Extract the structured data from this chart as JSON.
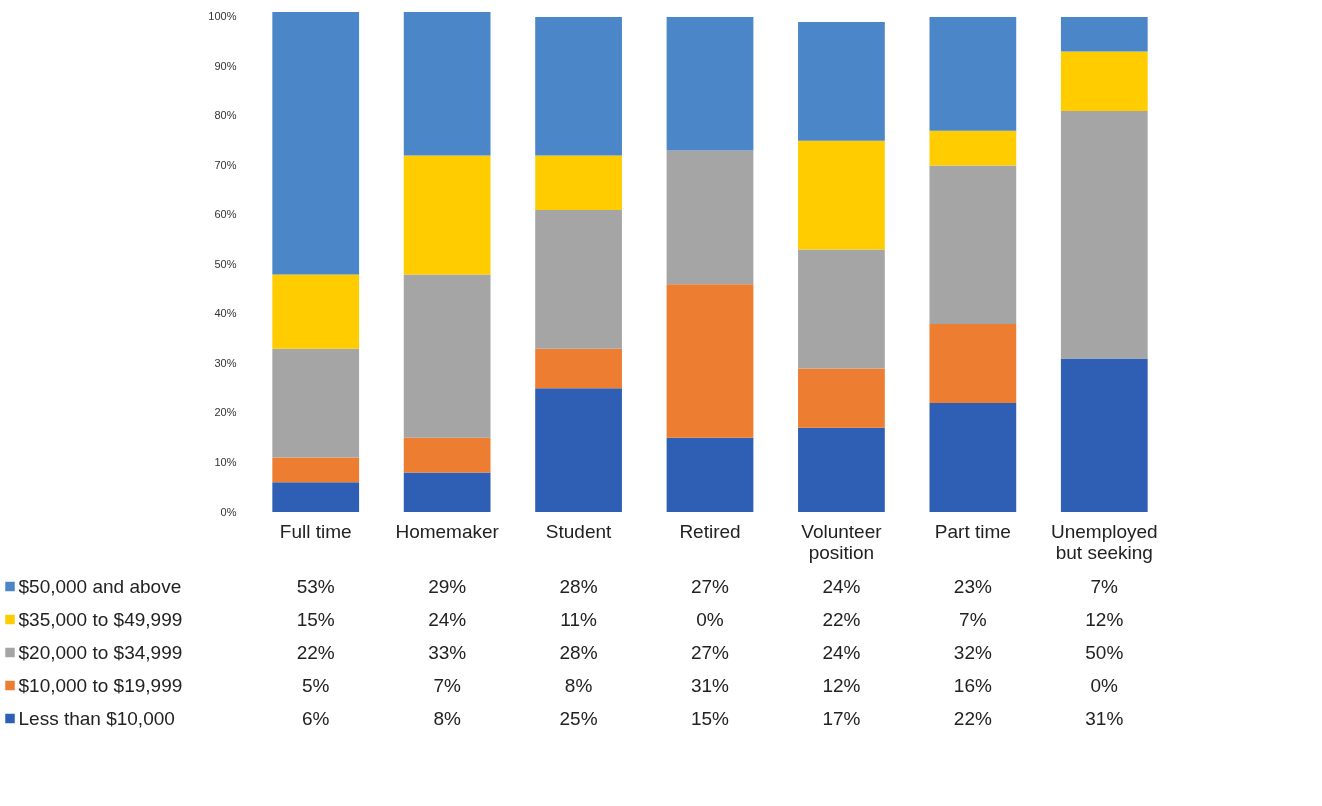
{
  "chart_data": {
    "type": "bar",
    "stacked": true,
    "categories": [
      "Full time",
      "Homemaker",
      "Student",
      "Retired",
      "Volunteer position",
      "Part time",
      "Unemployed but seeking"
    ],
    "series": [
      {
        "name": "Less than $10,000",
        "color": "#2e5fb4",
        "values": [
          6,
          8,
          25,
          15,
          17,
          22,
          31
        ],
        "value_labels": [
          "6%",
          "8%",
          "25%",
          "15%",
          "17%",
          "22%",
          "31%"
        ]
      },
      {
        "name": "$10,000 to $19,999",
        "color": "#ed7d31",
        "values": [
          5,
          7,
          8,
          31,
          12,
          16,
          0
        ],
        "value_labels": [
          "5%",
          "7%",
          "8%",
          "31%",
          "12%",
          "16%",
          "0%"
        ]
      },
      {
        "name": "$20,000 to $34,999",
        "color": "#a5a5a5",
        "values": [
          22,
          33,
          28,
          27,
          24,
          32,
          50
        ],
        "value_labels": [
          "22%",
          "33%",
          "28%",
          "27%",
          "24%",
          "32%",
          "50%"
        ]
      },
      {
        "name": "$35,000 to $49,999",
        "color": "#ffcc00",
        "values": [
          15,
          24,
          11,
          0,
          22,
          7,
          12
        ],
        "value_labels": [
          "15%",
          "24%",
          "11%",
          "0%",
          "22%",
          "7%",
          "12%"
        ]
      },
      {
        "name": "$50,000 and above",
        "color": "#4a86c8",
        "values": [
          53,
          29,
          28,
          27,
          24,
          23,
          7
        ],
        "value_labels": [
          "53%",
          "29%",
          "28%",
          "27%",
          "24%",
          "23%",
          "7%"
        ]
      }
    ],
    "ylim": [
      0,
      101
    ],
    "yticks": [
      {
        "value": 0,
        "label": "0%"
      },
      {
        "value": 10,
        "label": "10%"
      },
      {
        "value": 20,
        "label": "20%"
      },
      {
        "value": 30,
        "label": "30%"
      },
      {
        "value": 40,
        "label": "40%"
      },
      {
        "value": 50,
        "label": "50%"
      },
      {
        "value": 60,
        "label": "60%"
      },
      {
        "value": 70,
        "label": "70%"
      },
      {
        "value": 80,
        "label": "80%"
      },
      {
        "value": 90,
        "label": "90%"
      },
      {
        "value": 100,
        "label": "100%"
      }
    ],
    "grid": false,
    "legend": "bottom left"
  }
}
